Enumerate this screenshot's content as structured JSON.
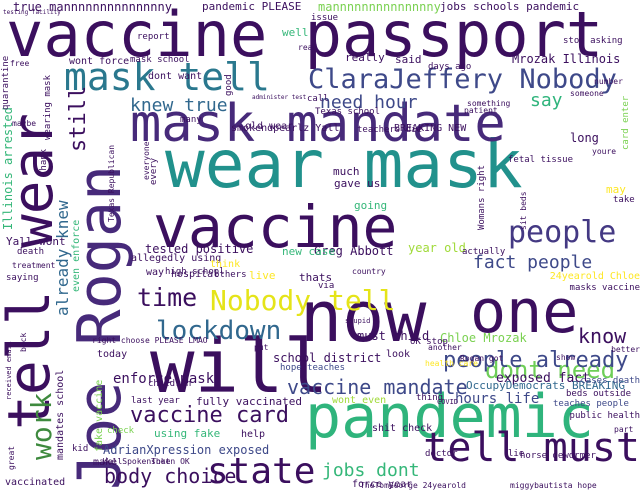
{
  "cloud": {
    "words": [
      {
        "text": "vaccine passport",
        "color": "#3b0f5e"
      },
      {
        "text": "wear mask",
        "color": "#21918c"
      },
      {
        "text": "mask mandate",
        "color": "#472a7a"
      },
      {
        "text": "vaccine",
        "color": "#3b0f5e"
      },
      {
        "text": "will",
        "color": "#3b0f5e"
      },
      {
        "text": "now",
        "color": "#3b0f5e"
      },
      {
        "text": "pandemic",
        "color": "#2fb47c"
      },
      {
        "text": "one",
        "color": "#3b0f5e"
      },
      {
        "text": "tell",
        "color": "#3b0f5e"
      },
      {
        "text": "wear",
        "color": "#3b0f5e"
      },
      {
        "text": "Joe Rogan",
        "color": "#472a7a"
      },
      {
        "text": "mask tell",
        "color": "#2a788e"
      },
      {
        "text": "ClaraJeffery Nobody",
        "color": "#3e4989"
      },
      {
        "text": "Nobody tell",
        "color": "#e5e419"
      },
      {
        "text": "tell must",
        "color": "#3b0f5e"
      },
      {
        "text": "people",
        "color": "#443983"
      },
      {
        "text": "time",
        "color": "#3b0f5e"
      },
      {
        "text": "lockdown",
        "color": "#31688e"
      },
      {
        "text": "state",
        "color": "#3b0f5e"
      },
      {
        "text": "dont need",
        "color": "#6ece58"
      },
      {
        "text": "people already",
        "color": "#3e4989"
      },
      {
        "text": "vaccine mandate",
        "color": "#3e4989"
      },
      {
        "text": "vaccine card",
        "color": "#3b0f5e"
      },
      {
        "text": "body choice",
        "color": "#3b0f5e"
      },
      {
        "text": "work",
        "color": "#3e8a3e"
      },
      {
        "text": "still",
        "color": "#3b0f5e"
      },
      {
        "text": "knew true",
        "color": "#31688e"
      },
      {
        "text": "need hour",
        "color": "#3e4989"
      },
      {
        "text": "know",
        "color": "#3b0f5e"
      },
      {
        "text": "fact people",
        "color": "#3e4989"
      },
      {
        "text": "say",
        "color": "#2fb47c"
      },
      {
        "text": "jobs dont",
        "color": "#35b779"
      },
      {
        "text": "already knew",
        "color": "#31688e"
      },
      {
        "text": "enforce mask",
        "color": "#3b0f5e"
      },
      {
        "text": "exposed fact",
        "color": "#3b0f5e"
      },
      {
        "text": "OccupyDemocrats BREAKING",
        "color": "#31688e"
      },
      {
        "text": "hours life",
        "color": "#3e4989"
      },
      {
        "text": "AdrianXpression exposed",
        "color": "#3e4989"
      },
      {
        "text": "fully vaccinated",
        "color": "#3b0f5e"
      },
      {
        "text": "Texas school",
        "color": "#3b0f5e"
      },
      {
        "text": "Greg Abbott",
        "color": "#3b0f5e"
      },
      {
        "text": "tested positive",
        "color": "#3b0f5e"
      },
      {
        "text": "Chloe Mrozak",
        "color": "#7ad151"
      },
      {
        "text": "school district",
        "color": "#3b0f5e"
      },
      {
        "text": "must child",
        "color": "#3b0f5e"
      },
      {
        "text": "Mrozak Illinois",
        "color": "#3b0f5e"
      },
      {
        "text": "Illinois arrested",
        "color": "#35b779"
      },
      {
        "text": "true mannnnnnnnnnnnnny",
        "color": "#3b0f5e"
      },
      {
        "text": "pandemic PLEASE",
        "color": "#3b0f5e"
      },
      {
        "text": "mannnnnnnnnnnnnny",
        "color": "#7ad151"
      },
      {
        "text": "jobs schools pandemic",
        "color": "#3b0f5e"
      },
      {
        "text": "smokendpearlz Yall",
        "color": "#3b0f5e"
      },
      {
        "text": "BREAKING NEW",
        "color": "#3b0f5e"
      },
      {
        "text": "Yall wont",
        "color": "#3b0f5e"
      },
      {
        "text": "wont force",
        "color": "#3b0f5e"
      },
      {
        "text": "year old",
        "color": "#a0da39"
      },
      {
        "text": "new case",
        "color": "#35b779"
      },
      {
        "text": "cases death",
        "color": "#3e4989"
      },
      {
        "text": "hope teaches",
        "color": "#3e4989"
      },
      {
        "text": "teaches people",
        "color": "#3e4989"
      },
      {
        "text": "beds outside",
        "color": "#3b0f5e"
      },
      {
        "text": "public health",
        "color": "#3b0f5e"
      },
      {
        "text": "24yearold Chloe",
        "color": "#fde725"
      },
      {
        "text": "masks vaccine",
        "color": "#3b0f5e"
      },
      {
        "text": "already",
        "color": "#3b0f5e"
      },
      {
        "text": "Yall",
        "color": "#3b0f5e"
      },
      {
        "text": "force year",
        "color": "#3b0f5e"
      },
      {
        "text": "make",
        "color": "#3b0f5e"
      },
      {
        "text": "using fake",
        "color": "#35b779"
      },
      {
        "text": "help",
        "color": "#3b0f5e"
      },
      {
        "text": "kid",
        "color": "#3b0f5e"
      },
      {
        "text": "check",
        "color": "#7ad151"
      },
      {
        "text": "doctor",
        "color": "#3b0f5e"
      },
      {
        "text": "thing",
        "color": "#3b0f5e"
      },
      {
        "text": "dont want",
        "color": "#3b0f5e"
      },
      {
        "text": "allegedly using",
        "color": "#3b0f5e"
      },
      {
        "text": "way",
        "color": "#3b0f5e"
      },
      {
        "text": "hospital",
        "color": "#3b0f5e"
      },
      {
        "text": "live",
        "color": "#fde725"
      },
      {
        "text": "thats",
        "color": "#3b0f5e"
      },
      {
        "text": "look",
        "color": "#3b0f5e"
      },
      {
        "text": "gave us",
        "color": "#3b0f5e"
      },
      {
        "text": "going",
        "color": "#35b779"
      },
      {
        "text": "give",
        "color": "#3b0f5e"
      },
      {
        "text": "today",
        "color": "#3b0f5e"
      },
      {
        "text": "last year",
        "color": "#3b0f5e"
      },
      {
        "text": "vaccinated",
        "color": "#3b0f5e"
      },
      {
        "text": "well",
        "color": "#35b779"
      },
      {
        "text": "really",
        "color": "#3b0f5e"
      },
      {
        "text": "said",
        "color": "#3b0f5e"
      },
      {
        "text": "issue",
        "color": "#3b0f5e"
      },
      {
        "text": "call",
        "color": "#3b0f5e"
      },
      {
        "text": "old wear",
        "color": "#3b0f5e"
      },
      {
        "text": "much",
        "color": "#3b0f5e"
      },
      {
        "text": "may",
        "color": "#fde725"
      },
      {
        "text": "take",
        "color": "#3b0f5e"
      },
      {
        "text": "long",
        "color": "#3b0f5e"
      },
      {
        "text": "first",
        "color": "#3b0f5e"
      },
      {
        "text": "gone",
        "color": "#3b0f5e"
      },
      {
        "text": "country",
        "color": "#3b0f5e"
      },
      {
        "text": "high school",
        "color": "#3b0f5e"
      },
      {
        "text": "shit check",
        "color": "#3b0f5e"
      },
      {
        "text": "death",
        "color": "#3b0f5e"
      },
      {
        "text": "actually",
        "color": "#3b0f5e"
      },
      {
        "text": "kids",
        "color": "#3b0f5e"
      },
      {
        "text": "made",
        "color": "#3b0f5e"
      },
      {
        "text": "get",
        "color": "#3b0f5e"
      },
      {
        "text": "schools",
        "color": "#3b0f5e"
      },
      {
        "text": "district closes",
        "color": "#3b0f5e"
      },
      {
        "text": "old",
        "color": "#3b0f5e"
      },
      {
        "text": "stop asking",
        "color": "#3b0f5e"
      },
      {
        "text": "mask school",
        "color": "#3b0f5e"
      },
      {
        "text": "think",
        "color": "#3b0f5e"
      },
      {
        "text": "right choose PLEASE LMAO",
        "color": "#3b0f5e"
      },
      {
        "text": "WellSpokenToken OK",
        "color": "#3b0f5e"
      },
      {
        "text": "TheTomGeorge 24yearold",
        "color": "#3b0f5e"
      },
      {
        "text": "miggybautista hope",
        "color": "#3b0f5e"
      },
      {
        "text": "sick",
        "color": "#3b0f5e"
      },
      {
        "text": "something",
        "color": "#3b0f5e"
      },
      {
        "text": "better",
        "color": "#3b0f5e"
      },
      {
        "text": "news",
        "color": "#3b0f5e"
      },
      {
        "text": "report",
        "color": "#3b0f5e"
      },
      {
        "text": "free",
        "color": "#3b0f5e"
      },
      {
        "text": "students",
        "color": "#3b0f5e"
      },
      {
        "text": "face",
        "color": "#3b0f5e"
      },
      {
        "text": "wont even",
        "color": "#a0da39"
      },
      {
        "text": "fake vaccine",
        "color": "#7ad151"
      },
      {
        "text": "even enforce",
        "color": "#35b779"
      },
      {
        "text": "mandates school",
        "color": "#3b0f5e"
      },
      {
        "text": "quarantine",
        "color": "#3b0f5e"
      },
      {
        "text": "wearing mask",
        "color": "#3b0f5e"
      },
      {
        "text": "COVID",
        "color": "#3b0f5e"
      },
      {
        "text": "lie",
        "color": "#3b0f5e"
      },
      {
        "text": "horse dewormer",
        "color": "#3b0f5e"
      },
      {
        "text": "life",
        "color": "#3b0f5e"
      },
      {
        "text": "saying",
        "color": "#3b0f5e"
      },
      {
        "text": "treatment",
        "color": "#3b0f5e"
      },
      {
        "text": "due",
        "color": "#3b0f5e"
      },
      {
        "text": "Thank",
        "color": "#3b0f5e"
      },
      {
        "text": "Texas Republican",
        "color": "#3b0f5e"
      },
      {
        "text": "every",
        "color": "#3b0f5e"
      },
      {
        "text": "fetal tissue",
        "color": "#3b0f5e"
      },
      {
        "text": "card enter",
        "color": "#7ad151"
      },
      {
        "text": "Womans right",
        "color": "#3b0f5e"
      },
      {
        "text": "sit beds",
        "color": "#3b0f5e"
      },
      {
        "text": "patient",
        "color": "#3b0f5e"
      },
      {
        "text": "youre",
        "color": "#3b0f5e"
      },
      {
        "text": "someone",
        "color": "#3b0f5e"
      },
      {
        "text": "anyone",
        "color": "#3b0f5e"
      },
      {
        "text": "number",
        "color": "#3b0f5e"
      },
      {
        "text": "days ago",
        "color": "#3b0f5e"
      },
      {
        "text": "read",
        "color": "#3b0f5e"
      },
      {
        "text": "many",
        "color": "#3b0f5e"
      },
      {
        "text": "others",
        "color": "#3b0f5e"
      },
      {
        "text": "see",
        "color": "#3b0f5e"
      },
      {
        "text": "via",
        "color": "#3b0f5e"
      },
      {
        "text": "put",
        "color": "#3b0f5e"
      },
      {
        "text": "us",
        "color": "#3b0f5e"
      },
      {
        "text": "go",
        "color": "#3b0f5e"
      },
      {
        "text": "OK stop",
        "color": "#3b0f5e"
      },
      {
        "text": "another",
        "color": "#3b0f5e"
      },
      {
        "text": "ivermectin",
        "color": "#3b0f5e"
      },
      {
        "text": "Rogan got",
        "color": "#3b0f5e"
      },
      {
        "text": "health care",
        "color": "#fde725"
      },
      {
        "text": "show",
        "color": "#3b0f5e"
      },
      {
        "text": "children",
        "color": "#3b0f5e"
      },
      {
        "text": "teachers die",
        "color": "#3b0f5e"
      },
      {
        "text": "good",
        "color": "#3b0f5e"
      },
      {
        "text": "part",
        "color": "#3b0f5e"
      },
      {
        "text": "great",
        "color": "#3b0f5e"
      },
      {
        "text": "received email",
        "color": "#3b0f5e"
      },
      {
        "text": "maybe",
        "color": "#3b0f5e"
      },
      {
        "text": "everyone",
        "color": "#3b0f5e"
      },
      {
        "text": "administer test",
        "color": "#3b0f5e"
      },
      {
        "text": "stupid",
        "color": "#3b0f5e"
      },
      {
        "text": "consider",
        "color": "#3b0f5e"
      },
      {
        "text": "testing facility",
        "color": "#3b0f5e"
      },
      {
        "text": "school",
        "color": "#3b0f5e"
      },
      {
        "text": "shot",
        "color": "#3b0f5e"
      },
      {
        "text": "pandemic always",
        "color": "#3b0f5e"
      },
      {
        "text": "back",
        "color": "#3b0f5e"
      }
    ]
  }
}
